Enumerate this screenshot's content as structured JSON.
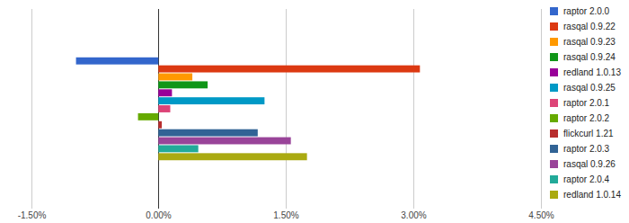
{
  "chart_data": {
    "type": "bar",
    "orientation": "horizontal",
    "categories": [
      null
    ],
    "series": [
      {
        "name": "raptor 2.0.0",
        "color": "#3366cc",
        "values": [
          -0.97
        ]
      },
      {
        "name": "rasqal 0.9.22",
        "color": "#dc3912",
        "values": [
          3.08
        ]
      },
      {
        "name": "rasqal 0.9.23",
        "color": "#ff9900",
        "values": [
          0.4
        ]
      },
      {
        "name": "rasqal 0.9.24",
        "color": "#109618",
        "values": [
          0.58
        ]
      },
      {
        "name": "redland 1.0.13",
        "color": "#990099",
        "values": [
          0.16
        ]
      },
      {
        "name": "rasqal 0.9.25",
        "color": "#0099c6",
        "values": [
          1.25
        ]
      },
      {
        "name": "raptor 2.0.1",
        "color": "#dd4477",
        "values": [
          0.14
        ]
      },
      {
        "name": "raptor 2.0.2",
        "color": "#66aa00",
        "values": [
          -0.24
        ]
      },
      {
        "name": "flickcurl 1.21",
        "color": "#b82e2e",
        "values": [
          0.04
        ]
      },
      {
        "name": "raptor 2.0.3",
        "color": "#316395",
        "values": [
          1.17
        ]
      },
      {
        "name": "rasqal 0.9.26",
        "color": "#994499",
        "values": [
          1.56
        ]
      },
      {
        "name": "raptor 2.0.4",
        "color": "#22aa99",
        "values": [
          0.47
        ]
      },
      {
        "name": "redland 1.0.14",
        "color": "#aaaa11",
        "values": [
          1.75
        ]
      }
    ],
    "xlim": [
      -1.5,
      4.5
    ],
    "xticks": [
      {
        "value": -1.5,
        "label": "-1.50%"
      },
      {
        "value": 0,
        "label": "0.00%"
      },
      {
        "value": 1.5,
        "label": "1.50%"
      },
      {
        "value": 3,
        "label": "3.00%"
      },
      {
        "value": 4.5,
        "label": "4.50%"
      }
    ],
    "grid": true,
    "legend": "right"
  }
}
